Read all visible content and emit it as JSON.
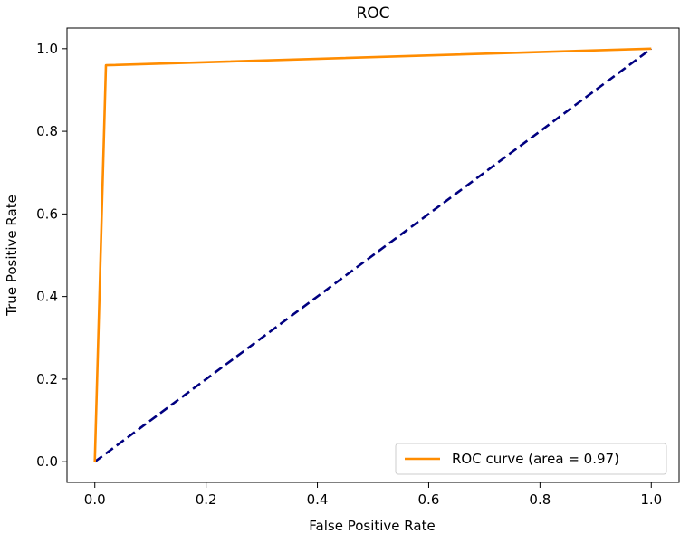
{
  "chart_data": {
    "type": "line",
    "title": "ROC",
    "xlabel": "False Positive Rate",
    "ylabel": "True Positive Rate",
    "xlim": [
      -0.05,
      1.05
    ],
    "ylim": [
      -0.05,
      1.05
    ],
    "xticks": [
      "0.0",
      "0.2",
      "0.4",
      "0.6",
      "0.8",
      "1.0"
    ],
    "yticks": [
      "0.0",
      "0.2",
      "0.4",
      "0.6",
      "0.8",
      "1.0"
    ],
    "grid": false,
    "legend_position": "lower-right",
    "series": [
      {
        "name": "ROC curve (area = 0.97)",
        "color": "#ff8c00",
        "style": "solid",
        "x": [
          0.0,
          0.02,
          1.0
        ],
        "y": [
          0.0,
          0.96,
          1.0
        ]
      },
      {
        "color": "#000080",
        "style": "dashed",
        "x": [
          0.0,
          1.0
        ],
        "y": [
          0.0,
          1.0
        ]
      }
    ]
  }
}
